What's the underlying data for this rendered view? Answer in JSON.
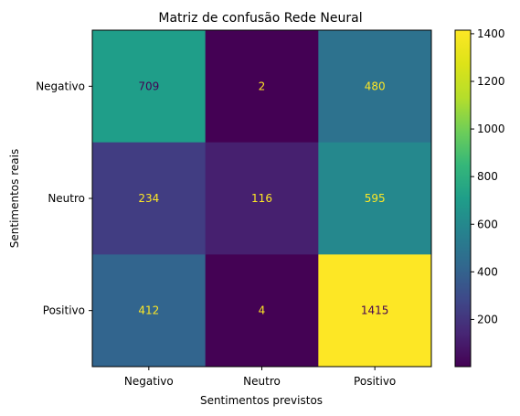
{
  "chart_data": {
    "type": "heatmap",
    "title": "Matriz de confusão Rede Neural",
    "xlabel": "Sentimentos previstos",
    "ylabel": "Sentimentos reais",
    "x_categories": [
      "Negativo",
      "Neutro",
      "Positivo"
    ],
    "y_categories": [
      "Negativo",
      "Neutro",
      "Positivo"
    ],
    "matrix": [
      [
        709,
        2,
        480
      ],
      [
        234,
        116,
        595
      ],
      [
        412,
        4,
        1415
      ]
    ],
    "colormap": "viridis",
    "colorbar": {
      "vmin": 2,
      "vmax": 1415,
      "ticks": [
        200,
        400,
        600,
        800,
        1000,
        1200,
        1400
      ]
    },
    "grid": false
  }
}
